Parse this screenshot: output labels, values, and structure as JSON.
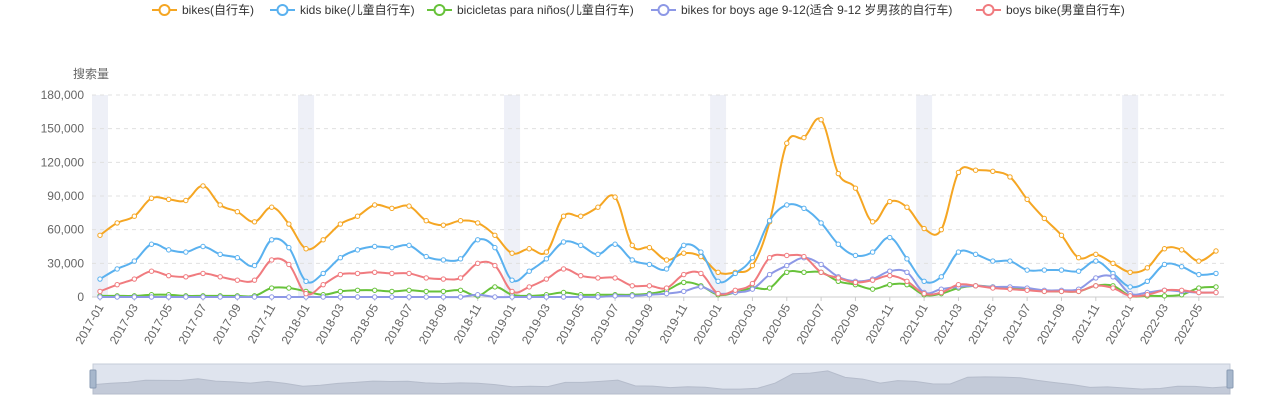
{
  "chart_data": {
    "type": "line",
    "ylabel": "搜索量",
    "ylim": [
      0,
      180000
    ],
    "yticks": [
      0,
      30000,
      60000,
      90000,
      120000,
      150000,
      180000
    ],
    "ytick_labels": [
      "0",
      "30,000",
      "60,000",
      "90,000",
      "120,000",
      "150,000",
      "180,000"
    ],
    "grid": true,
    "legend_position": "top-center",
    "x_tick_labels": [
      "2017-01",
      "2017-03",
      "2017-05",
      "2017-07",
      "2017-09",
      "2017-11",
      "2018-01",
      "2018-03",
      "2018-05",
      "2018-07",
      "2018-09",
      "2018-11",
      "2019-01",
      "2019-03",
      "2019-05",
      "2019-07",
      "2019-09",
      "2019-11",
      "2020-01",
      "2020-03",
      "2020-05",
      "2020-07",
      "2020-09",
      "2020-11",
      "2021-01",
      "2021-03",
      "2021-05",
      "2021-07",
      "2021-09",
      "2021-11",
      "2022-01",
      "2022-03",
      "2022-05"
    ],
    "x": [
      "2017-01",
      "2017-02",
      "2017-03",
      "2017-04",
      "2017-05",
      "2017-06",
      "2017-07",
      "2017-08",
      "2017-09",
      "2017-10",
      "2017-11",
      "2017-12",
      "2018-01",
      "2018-02",
      "2018-03",
      "2018-04",
      "2018-05",
      "2018-06",
      "2018-07",
      "2018-08",
      "2018-09",
      "2018-10",
      "2018-11",
      "2018-12",
      "2019-01",
      "2019-02",
      "2019-03",
      "2019-04",
      "2019-05",
      "2019-06",
      "2019-07",
      "2019-08",
      "2019-09",
      "2019-10",
      "2019-11",
      "2019-12",
      "2020-01",
      "2020-02",
      "2020-03",
      "2020-04",
      "2020-05",
      "2020-06",
      "2020-07",
      "2020-08",
      "2020-09",
      "2020-10",
      "2020-11",
      "2020-12",
      "2021-01",
      "2021-02",
      "2021-03",
      "2021-04",
      "2021-05",
      "2021-06",
      "2021-07",
      "2021-08",
      "2021-09",
      "2021-10",
      "2021-11",
      "2021-12",
      "2022-01",
      "2022-02",
      "2022-03",
      "2022-04",
      "2022-05",
      "2022-06"
    ],
    "highlight_months": [
      "2017-01",
      "2018-01",
      "2019-01",
      "2020-01",
      "2021-01",
      "2022-01"
    ],
    "series": [
      {
        "name": "bikes(自行车)",
        "color": "#f5a623",
        "values": [
          55000,
          66000,
          72000,
          88000,
          87000,
          86000,
          99000,
          82000,
          76000,
          67000,
          80000,
          65000,
          43000,
          51000,
          65000,
          72000,
          82000,
          79000,
          81000,
          68000,
          64000,
          68000,
          66000,
          55000,
          39000,
          43000,
          40000,
          72000,
          72000,
          80000,
          89000,
          46000,
          44000,
          33000,
          39000,
          36000,
          22000,
          22000,
          28000,
          67000,
          137000,
          142000,
          158000,
          110000,
          97000,
          67000,
          85000,
          80000,
          61000,
          60000,
          111000,
          113000,
          112000,
          107000,
          87000,
          70000,
          55000,
          35000,
          38000,
          30000,
          22000,
          26000,
          43000,
          42000,
          32000,
          41000
        ]
      },
      {
        "name": "kids bike(儿童自行车)",
        "color": "#5ab1ef",
        "values": [
          16000,
          25000,
          32000,
          47000,
          42000,
          40000,
          45000,
          38000,
          35000,
          28000,
          51000,
          44000,
          14000,
          21000,
          35000,
          42000,
          45000,
          44000,
          46000,
          36000,
          33000,
          34000,
          51000,
          44000,
          15000,
          23000,
          34000,
          49000,
          46000,
          38000,
          47000,
          33000,
          29000,
          25000,
          46000,
          40000,
          14000,
          21000,
          35000,
          68000,
          82000,
          79000,
          66000,
          47000,
          37000,
          40000,
          53000,
          34000,
          14000,
          18000,
          40000,
          38000,
          32000,
          32000,
          24000,
          24000,
          24000,
          23000,
          32000,
          21000,
          9000,
          14000,
          29000,
          27000,
          20000,
          21000
        ]
      },
      {
        "name": "bicicletas para niños(儿童自行车)",
        "color": "#67c23a",
        "values": [
          1000,
          1000,
          1000,
          2000,
          2000,
          1000,
          1000,
          1000,
          1000,
          1000,
          8000,
          8000,
          5000,
          2000,
          5000,
          6000,
          6000,
          5000,
          6000,
          5000,
          5000,
          6000,
          1000,
          9000,
          2000,
          1000,
          2000,
          4000,
          2000,
          2000,
          2000,
          2000,
          3000,
          6000,
          13000,
          10000,
          2000,
          4000,
          8000,
          8000,
          22000,
          22000,
          22000,
          14000,
          11000,
          7000,
          11000,
          11000,
          2000,
          3000,
          8000,
          10000,
          9000,
          8000,
          7000,
          5000,
          5000,
          5000,
          10000,
          10000,
          1000,
          1000,
          1000,
          2000,
          8000,
          9000
        ]
      },
      {
        "name": "bikes for boys age 9-12(适合 9-12 岁男孩的自行车)",
        "color": "#8d98e6",
        "values": [
          0,
          0,
          0,
          0,
          0,
          0,
          0,
          0,
          0,
          0,
          0,
          0,
          0,
          0,
          0,
          0,
          0,
          0,
          0,
          0,
          0,
          0,
          2000,
          0,
          0,
          0,
          0,
          0,
          0,
          0,
          1000,
          1000,
          2000,
          3000,
          5000,
          9000,
          3000,
          4000,
          7000,
          20000,
          28000,
          35000,
          29000,
          18000,
          14000,
          16000,
          23000,
          22000,
          4000,
          7000,
          9000,
          10000,
          9000,
          9000,
          8000,
          6000,
          6000,
          7000,
          17000,
          18000,
          3000,
          4000,
          6000,
          5000,
          4000,
          4000
        ]
      },
      {
        "name": "boys bike(男童自行车)",
        "color": "#f07b7f",
        "values": [
          5000,
          11000,
          16000,
          23000,
          19000,
          18000,
          21000,
          18000,
          15000,
          15000,
          33000,
          29000,
          3000,
          11000,
          20000,
          21000,
          22000,
          21000,
          21000,
          17000,
          16000,
          17000,
          30000,
          28000,
          5000,
          9000,
          16000,
          25000,
          19000,
          17000,
          17000,
          10000,
          10000,
          8000,
          20000,
          21000,
          3000,
          6000,
          12000,
          35000,
          37000,
          36000,
          22000,
          17000,
          13000,
          15000,
          19000,
          14000,
          3000,
          4000,
          11000,
          10000,
          8000,
          7000,
          6000,
          5000,
          5000,
          5000,
          10000,
          8000,
          1000,
          2000,
          6000,
          6000,
          4000,
          4000
        ]
      }
    ]
  }
}
